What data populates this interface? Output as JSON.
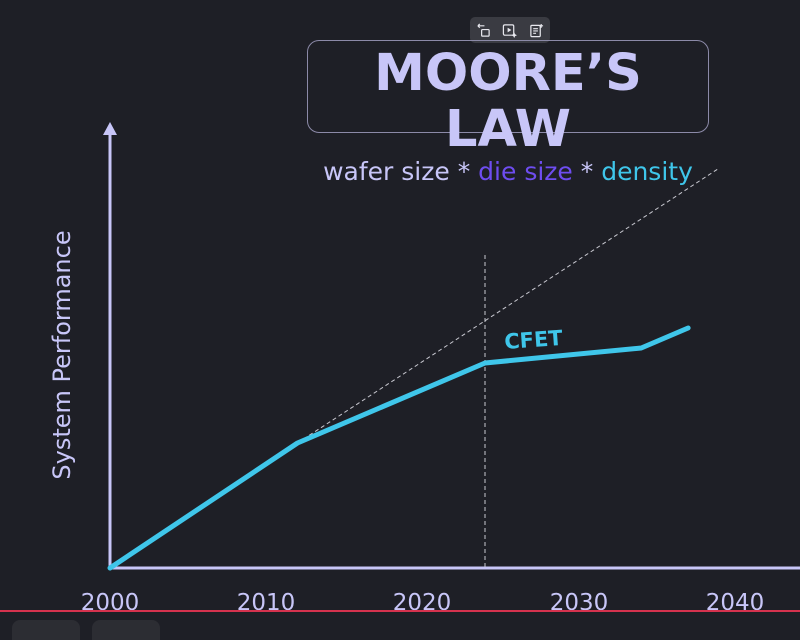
{
  "toolbar": {
    "icons": [
      "swap-icon",
      "play-sparkle-icon",
      "note-add-icon"
    ]
  },
  "title": {
    "main": "MOORE’S LAW",
    "sub_part1": "wafer size",
    "sep1": " * ",
    "sub_part2": "die size",
    "sep2": " * ",
    "sub_part3": "density",
    "colors": {
      "main": "#c8c6f8",
      "die_size": "#6e4df0",
      "density": "#3fc6ea"
    }
  },
  "chart_data": {
    "type": "line",
    "ylabel": "System Performance",
    "xlabel": "",
    "xticks": [
      "2000",
      "2010",
      "2020",
      "2030",
      "2040"
    ],
    "xlim": [
      2000,
      2040
    ],
    "ylim": [
      0,
      100
    ],
    "series": [
      {
        "name": "",
        "color": "#3fc6ea",
        "x": [
          2000,
          2012,
          2024,
          2034,
          2037
        ],
        "y": [
          0,
          25,
          41,
          44,
          48
        ]
      }
    ],
    "trend_line": {
      "x": [
        2012,
        2039
      ],
      "y": [
        25,
        80
      ],
      "style": "dashed"
    },
    "vertical_marker": {
      "x": 2024,
      "style": "dashed"
    },
    "annotations": [
      {
        "text": "CFET",
        "x": 2024.5,
        "y": 43
      }
    ],
    "grid": false
  }
}
